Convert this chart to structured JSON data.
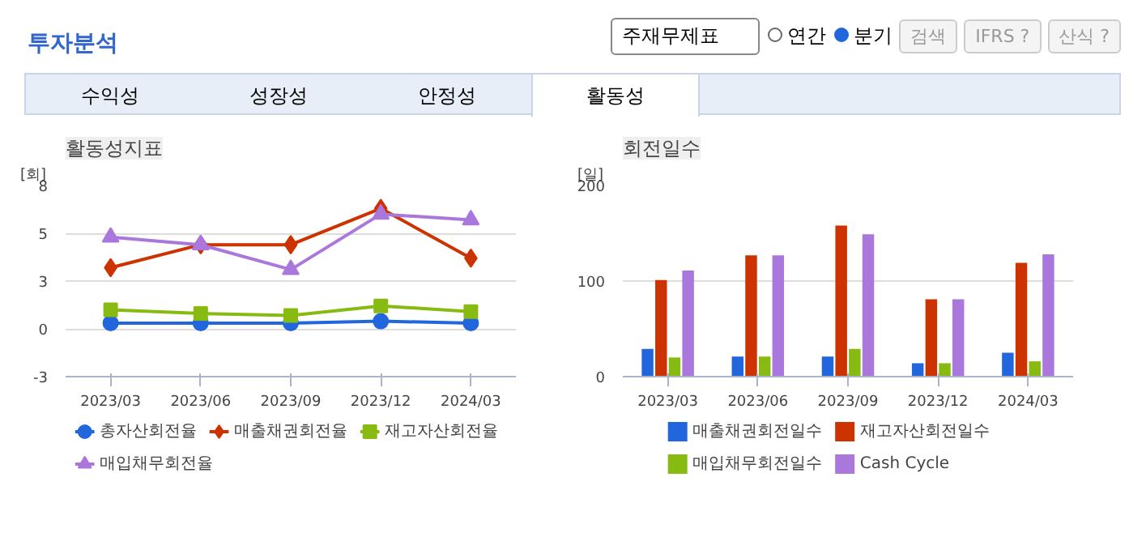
{
  "chart_data": [
    {
      "type": "other",
      "title": "투자분석",
      "annotations": [
        "주재무제표",
        "연간",
        "분기",
        "검색",
        "IFRS ?",
        "산식 ?",
        "수익성",
        "성장성",
        "안정성",
        "활동성"
      ]
    },
    {
      "type": "line",
      "title": "활동성지표",
      "ylabel": "[회]",
      "categories": [
        "2023/03",
        "2023/06",
        "2023/09",
        "2023/12",
        "2024/03"
      ],
      "ylim": [
        -2.5,
        7.5
      ],
      "yticks": [
        {
          "value": -2.5,
          "label": "-3"
        },
        0,
        {
          "value": 2.5,
          "label": "3"
        },
        5,
        {
          "value": 7.5,
          "label": "8"
        }
      ],
      "grid": "y",
      "legend": "bottom",
      "series": [
        {
          "name": "총자산회전율",
          "color": "#2266dd",
          "marker": "circle",
          "values": [
            0.3,
            0.3,
            0.3,
            0.4,
            0.3
          ]
        },
        {
          "name": "매출채권회전율",
          "color": "#cc3300",
          "marker": "diamond",
          "values": [
            3.2,
            4.4,
            4.4,
            6.3,
            3.7
          ]
        },
        {
          "name": "재고자산회전율",
          "color": "#88bb11",
          "marker": "square",
          "values": [
            1.0,
            0.8,
            0.7,
            1.2,
            0.9
          ]
        },
        {
          "name": "매입채무회전율",
          "color": "#aa77dd",
          "marker": "triangle",
          "values": [
            4.8,
            4.4,
            3.1,
            6.0,
            5.7
          ]
        }
      ]
    },
    {
      "type": "bar",
      "title": "회전일수",
      "ylabel": "[일]",
      "categories": [
        "2023/03",
        "2023/06",
        "2023/09",
        "2023/12",
        "2024/03"
      ],
      "ylim": [
        0,
        200
      ],
      "yticks": [
        0,
        100,
        200
      ],
      "grid": "y",
      "legend": "bottom",
      "series": [
        {
          "name": "매출채권회전일수",
          "color": "#2266dd",
          "values": [
            29,
            21,
            21,
            14,
            25
          ]
        },
        {
          "name": "재고자산회전일수",
          "color": "#cc3300",
          "values": [
            101,
            127,
            158,
            81,
            119
          ]
        },
        {
          "name": "매입채무회전일수",
          "color": "#88bb11",
          "values": [
            20,
            21,
            29,
            14,
            16
          ]
        },
        {
          "name": "Cash Cycle",
          "color": "#aa77dd",
          "values": [
            111,
            127,
            149,
            81,
            128
          ]
        }
      ]
    }
  ]
}
